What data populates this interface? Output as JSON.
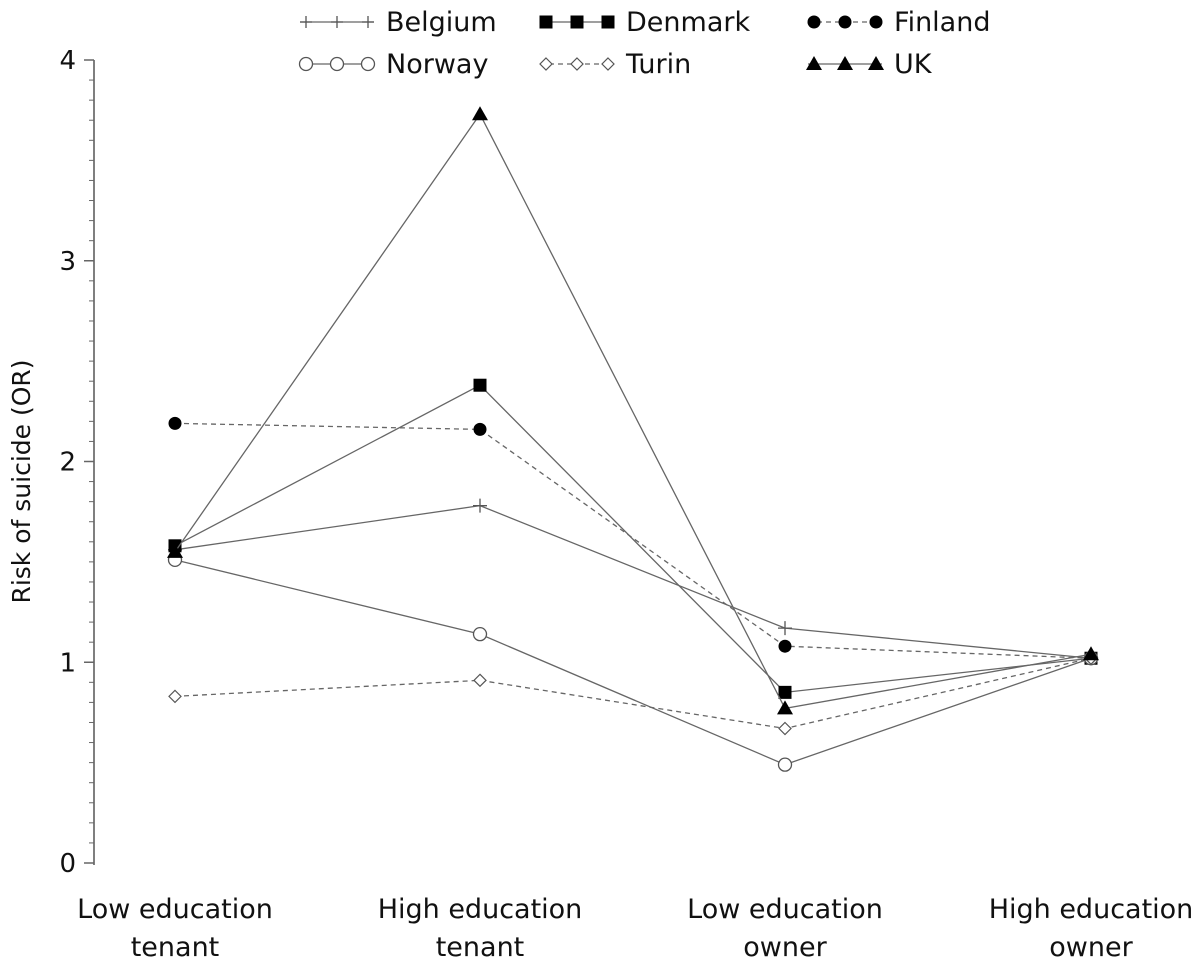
{
  "chart_data": {
    "type": "line",
    "title": "",
    "xlabel": "",
    "ylabel": "Risk of suicide (OR)",
    "ylim": [
      0,
      4
    ],
    "yticks": [
      "0",
      "1",
      "2",
      "3",
      "4"
    ],
    "categories": [
      [
        "Low education",
        "tenant"
      ],
      [
        "High education",
        "tenant"
      ],
      [
        "Low education",
        "owner"
      ],
      [
        "High education",
        "owner"
      ]
    ],
    "grid": false,
    "legend_position": "top",
    "series": [
      {
        "name": "Belgium",
        "marker": "plus",
        "dash": "solid",
        "values": [
          1.56,
          1.78,
          1.17,
          1.02
        ]
      },
      {
        "name": "Denmark",
        "marker": "square",
        "dash": "solid",
        "values": [
          1.58,
          2.38,
          0.85,
          1.02
        ]
      },
      {
        "name": "Finland",
        "marker": "circle-filled",
        "dash": "dashed",
        "values": [
          2.19,
          2.16,
          1.08,
          1.02
        ]
      },
      {
        "name": "Norway",
        "marker": "circle-open",
        "dash": "solid",
        "values": [
          1.51,
          1.14,
          0.49,
          1.02
        ]
      },
      {
        "name": "Turin",
        "marker": "diamond-open",
        "dash": "dashed",
        "values": [
          0.83,
          0.91,
          0.67,
          1.02
        ]
      },
      {
        "name": "UK",
        "marker": "triangle",
        "dash": "solid",
        "values": [
          1.55,
          3.73,
          0.77,
          1.04
        ]
      }
    ]
  }
}
